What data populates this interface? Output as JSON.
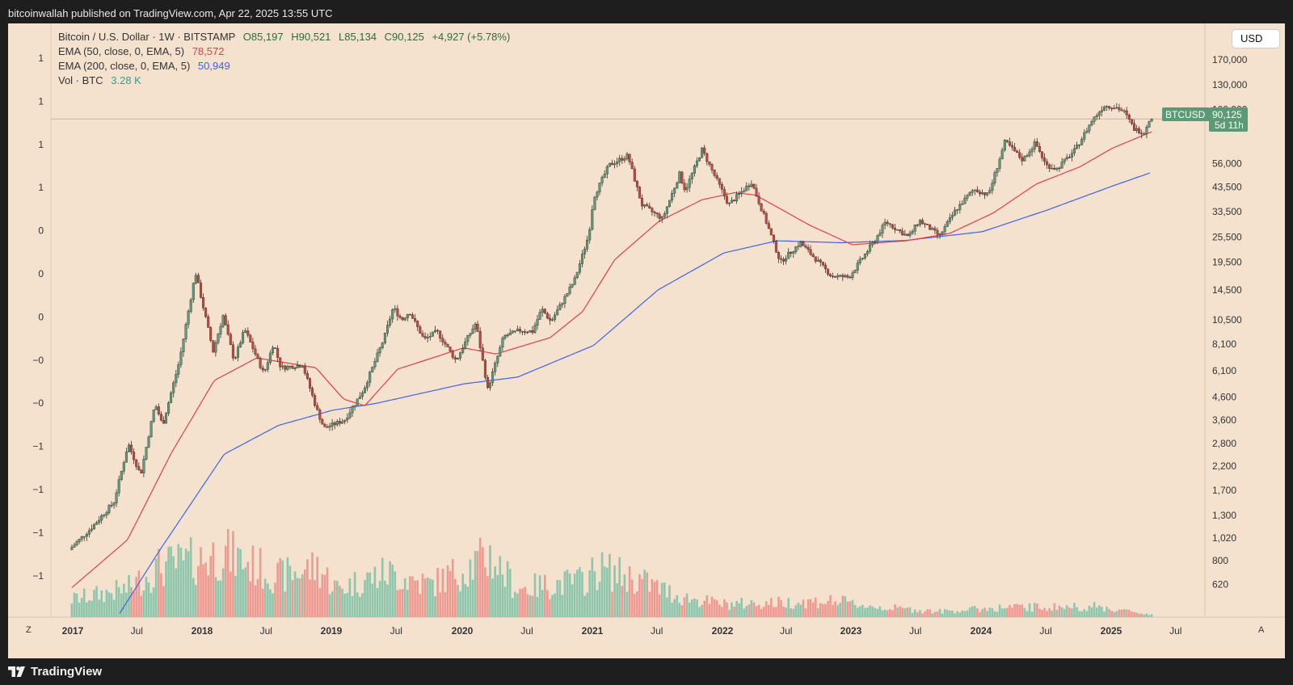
{
  "header": {
    "publisher_line": "bitcoinwallah published on TradingView.com, Apr 22, 2025 13:55 UTC"
  },
  "legend": {
    "main": {
      "symbol": "Bitcoin / U.S. Dollar · 1W · BITSTAMP",
      "open": "O85,197",
      "high": "H90,521",
      "low": "L85,134",
      "close": "C90,125",
      "change": "+4,927 (+5.78%)"
    },
    "ema50": {
      "label": "EMA (50, close, 0, EMA, 5)",
      "value": "78,572"
    },
    "ema200": {
      "label": "EMA (200, close, 0, EMA, 5)",
      "value": "50,949"
    },
    "vol": {
      "label": "Vol · BTC",
      "value": "3.28 K"
    }
  },
  "controls": {
    "currency": "USD",
    "zoom_button": "Z",
    "auto_button": "A"
  },
  "footer": {
    "brand": "TradingView"
  },
  "colors": {
    "up": "#5c9c78",
    "down": "#c9453e",
    "ema50": "#e0404a",
    "ema200": "#3d63e8",
    "background": "#f4e2cf",
    "price_tag": "#5b9a74"
  },
  "chart_data": {
    "type": "candlestick",
    "timeframe": "1W",
    "y_scale": "log",
    "ylim": [
      520,
      190000
    ],
    "y_ticks": [
      620,
      800,
      1020,
      1300,
      1700,
      2200,
      2800,
      3600,
      4600,
      6100,
      8100,
      10500,
      14500,
      19500,
      25500,
      33500,
      43500,
      56000,
      100000,
      130000,
      170000
    ],
    "y_tick_labels": [
      "620",
      "800",
      "1,020",
      "1,300",
      "1,700",
      "2,200",
      "2,800",
      "3,600",
      "4,600",
      "6,100",
      "8,100",
      "10,500",
      "14,500",
      "19,500",
      "25,500",
      "33,500",
      "43,500",
      "56,000",
      "100,000",
      "130,000",
      "170,000"
    ],
    "x_ticks": [
      {
        "date": "2017-01-01",
        "label": "2017"
      },
      {
        "date": "2017-07-01",
        "label": "Jul"
      },
      {
        "date": "2018-01-01",
        "label": "2018"
      },
      {
        "date": "2018-07-01",
        "label": "Jul"
      },
      {
        "date": "2019-01-01",
        "label": "2019"
      },
      {
        "date": "2019-07-01",
        "label": "Jul"
      },
      {
        "date": "2020-01-01",
        "label": "2020"
      },
      {
        "date": "2020-07-01",
        "label": "Jul"
      },
      {
        "date": "2021-01-01",
        "label": "2021"
      },
      {
        "date": "2021-07-01",
        "label": "Jul"
      },
      {
        "date": "2022-01-01",
        "label": "2022"
      },
      {
        "date": "2022-07-01",
        "label": "Jul"
      },
      {
        "date": "2023-01-01",
        "label": "2023"
      },
      {
        "date": "2023-07-01",
        "label": "Jul"
      },
      {
        "date": "2024-01-01",
        "label": "2024"
      },
      {
        "date": "2024-07-01",
        "label": "Jul"
      },
      {
        "date": "2025-01-01",
        "label": "2025"
      },
      {
        "date": "2025-07-01",
        "label": "Jul"
      }
    ],
    "left_scale_labels": [
      "1",
      "1",
      "1",
      "1",
      "0",
      "0",
      "0",
      "−0",
      "−0",
      "−1",
      "−1",
      "−1",
      "−1"
    ],
    "price_anchors": [
      [
        "2016-12-26",
        900
      ],
      [
        "2017-03-01",
        1150
      ],
      [
        "2017-05-01",
        1500
      ],
      [
        "2017-06-10",
        2800
      ],
      [
        "2017-07-15",
        2000
      ],
      [
        "2017-08-25",
        4300
      ],
      [
        "2017-09-15",
        3400
      ],
      [
        "2017-11-01",
        6700
      ],
      [
        "2017-12-17",
        17500
      ],
      [
        "2018-02-05",
        7500
      ],
      [
        "2018-03-05",
        11000
      ],
      [
        "2018-04-05",
        6800
      ],
      [
        "2018-05-05",
        9500
      ],
      [
        "2018-06-28",
        5900
      ],
      [
        "2018-07-25",
        8200
      ],
      [
        "2018-08-15",
        6300
      ],
      [
        "2018-10-15",
        6500
      ],
      [
        "2018-11-25",
        4000
      ],
      [
        "2018-12-15",
        3300
      ],
      [
        "2019-02-10",
        3600
      ],
      [
        "2019-04-05",
        5000
      ],
      [
        "2019-05-30",
        8500
      ],
      [
        "2019-06-26",
        12000
      ],
      [
        "2019-07-20",
        10500
      ],
      [
        "2019-08-10",
        11500
      ],
      [
        "2019-09-20",
        8500
      ],
      [
        "2019-10-26",
        9300
      ],
      [
        "2019-12-18",
        6800
      ],
      [
        "2020-01-20",
        8700
      ],
      [
        "2020-02-12",
        10200
      ],
      [
        "2020-03-16",
        5000
      ],
      [
        "2020-04-30",
        8800
      ],
      [
        "2020-06-15",
        9400
      ],
      [
        "2020-07-20",
        9300
      ],
      [
        "2020-08-15",
        11800
      ],
      [
        "2020-09-10",
        10300
      ],
      [
        "2020-11-15",
        16000
      ],
      [
        "2020-12-25",
        26000
      ],
      [
        "2021-01-08",
        39000
      ],
      [
        "2021-02-20",
        55000
      ],
      [
        "2021-04-14",
        61000
      ],
      [
        "2021-05-23",
        36000
      ],
      [
        "2021-07-20",
        31000
      ],
      [
        "2021-09-06",
        50000
      ],
      [
        "2021-09-22",
        42000
      ],
      [
        "2021-11-08",
        65000
      ],
      [
        "2022-01-22",
        36000
      ],
      [
        "2022-03-28",
        46000
      ],
      [
        "2022-05-12",
        29000
      ],
      [
        "2022-06-18",
        19500
      ],
      [
        "2022-08-14",
        24000
      ],
      [
        "2022-11-10",
        16800
      ],
      [
        "2022-12-30",
        16600
      ],
      [
        "2023-03-15",
        25000
      ],
      [
        "2023-04-12",
        30000
      ],
      [
        "2023-06-15",
        25500
      ],
      [
        "2023-07-15",
        30500
      ],
      [
        "2023-09-10",
        25800
      ],
      [
        "2023-10-25",
        34000
      ],
      [
        "2023-12-15",
        42500
      ],
      [
        "2024-01-25",
        40000
      ],
      [
        "2024-03-12",
        71000
      ],
      [
        "2024-05-01",
        58000
      ],
      [
        "2024-06-05",
        70000
      ],
      [
        "2024-07-05",
        55000
      ],
      [
        "2024-08-05",
        53000
      ],
      [
        "2024-09-26",
        65000
      ],
      [
        "2024-11-12",
        89000
      ],
      [
        "2024-12-16",
        104000
      ],
      [
        "2025-01-20",
        102000
      ],
      [
        "2025-02-10",
        97000
      ],
      [
        "2025-03-10",
        81000
      ],
      [
        "2025-04-07",
        78000
      ],
      [
        "2025-04-21",
        90125
      ]
    ],
    "ema50_anchors": [
      [
        "2016-12-26",
        600
      ],
      [
        "2017-06-01",
        1000
      ],
      [
        "2017-10-01",
        2500
      ],
      [
        "2018-02-01",
        5500
      ],
      [
        "2018-06-01",
        7000
      ],
      [
        "2018-11-15",
        6300
      ],
      [
        "2019-02-01",
        4500
      ],
      [
        "2019-04-01",
        4200
      ],
      [
        "2019-07-01",
        6200
      ],
      [
        "2020-01-01",
        7800
      ],
      [
        "2020-04-01",
        7300
      ],
      [
        "2020-09-01",
        8700
      ],
      [
        "2020-12-01",
        11500
      ],
      [
        "2021-03-01",
        20000
      ],
      [
        "2021-07-01",
        30000
      ],
      [
        "2021-11-01",
        38000
      ],
      [
        "2022-02-01",
        41000
      ],
      [
        "2022-04-01",
        40000
      ],
      [
        "2022-09-01",
        29000
      ],
      [
        "2023-01-01",
        23500
      ],
      [
        "2023-06-01",
        24500
      ],
      [
        "2023-10-01",
        26500
      ],
      [
        "2024-02-01",
        33000
      ],
      [
        "2024-06-01",
        45000
      ],
      [
        "2024-10-01",
        54000
      ],
      [
        "2025-01-01",
        66000
      ],
      [
        "2025-04-21",
        78572
      ]
    ],
    "ema200_anchors": [
      [
        "2017-03-01",
        300
      ],
      [
        "2017-09-01",
        900
      ],
      [
        "2018-03-01",
        2500
      ],
      [
        "2018-08-01",
        3400
      ],
      [
        "2019-01-01",
        4000
      ],
      [
        "2019-05-01",
        4300
      ],
      [
        "2020-01-01",
        5300
      ],
      [
        "2020-06-01",
        5700
      ],
      [
        "2021-01-01",
        8000
      ],
      [
        "2021-07-01",
        14500
      ],
      [
        "2022-01-01",
        21500
      ],
      [
        "2022-06-01",
        24500
      ],
      [
        "2022-12-01",
        24000
      ],
      [
        "2023-06-01",
        24600
      ],
      [
        "2024-01-01",
        27000
      ],
      [
        "2024-07-01",
        34000
      ],
      [
        "2025-01-01",
        44000
      ],
      [
        "2025-04-21",
        50949
      ]
    ],
    "volume_max_btc": 140000,
    "volume_anchors": [
      [
        "2016-12-26",
        22000
      ],
      [
        "2017-06-01",
        35000
      ],
      [
        "2017-09-01",
        62000
      ],
      [
        "2017-12-15",
        70000
      ],
      [
        "2018-03-01",
        80000
      ],
      [
        "2018-08-01",
        50000
      ],
      [
        "2018-11-20",
        62000
      ],
      [
        "2019-01-15",
        35000
      ],
      [
        "2019-06-01",
        55000
      ],
      [
        "2019-10-01",
        40000
      ],
      [
        "2020-03-16",
        75000
      ],
      [
        "2020-06-01",
        35000
      ],
      [
        "2020-12-01",
        45000
      ],
      [
        "2021-01-15",
        60000
      ],
      [
        "2021-05-15",
        45000
      ],
      [
        "2021-09-01",
        25000
      ],
      [
        "2022-01-01",
        16000
      ],
      [
        "2022-06-15",
        18000
      ],
      [
        "2022-11-10",
        20000
      ],
      [
        "2023-03-01",
        13000
      ],
      [
        "2023-09-01",
        7000
      ],
      [
        "2024-03-01",
        12000
      ],
      [
        "2024-11-15",
        13000
      ],
      [
        "2025-04-21",
        3280
      ]
    ],
    "last_price_tag": {
      "name": "BTCUSD",
      "price": "90,125",
      "countdown": "5d 11h"
    }
  }
}
